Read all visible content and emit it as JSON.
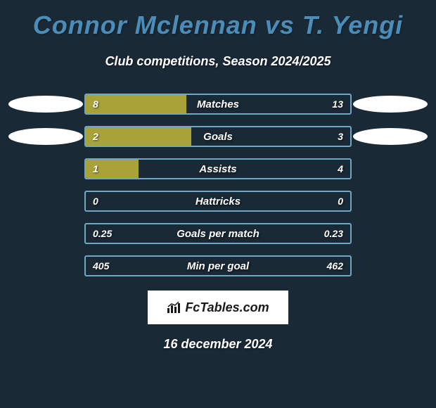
{
  "title": "Connor Mclennan vs T. Yengi",
  "subtitle": "Club competitions, Season 2024/2025",
  "date": "16 december 2024",
  "logo_text": "FcTables.com",
  "background_color": "#1a2936",
  "title_color": "#4a8db8",
  "stats": [
    {
      "label": "Matches",
      "left_value": "8",
      "right_value": "13",
      "fill_percent": 38,
      "fill_color": "#a8a239",
      "border_color": "#6fa8c7",
      "has_left_badge": true,
      "has_right_badge": true
    },
    {
      "label": "Goals",
      "left_value": "2",
      "right_value": "3",
      "fill_percent": 40,
      "fill_color": "#a8a239",
      "border_color": "#6fa8c7",
      "has_left_badge": true,
      "has_right_badge": true
    },
    {
      "label": "Assists",
      "left_value": "1",
      "right_value": "4",
      "fill_percent": 20,
      "fill_color": "#a8a239",
      "border_color": "#6fa8c7",
      "has_left_badge": false,
      "has_right_badge": false
    },
    {
      "label": "Hattricks",
      "left_value": "0",
      "right_value": "0",
      "fill_percent": 0,
      "fill_color": "#a8a239",
      "border_color": "#6fa8c7",
      "has_left_badge": false,
      "has_right_badge": false
    },
    {
      "label": "Goals per match",
      "left_value": "0.25",
      "right_value": "0.23",
      "fill_percent": 0,
      "fill_color": "#a8a239",
      "border_color": "#6fa8c7",
      "has_left_badge": false,
      "has_right_badge": false
    },
    {
      "label": "Min per goal",
      "left_value": "405",
      "right_value": "462",
      "fill_percent": 0,
      "fill_color": "#a8a239",
      "border_color": "#6fa8c7",
      "has_left_badge": false,
      "has_right_badge": false
    }
  ]
}
